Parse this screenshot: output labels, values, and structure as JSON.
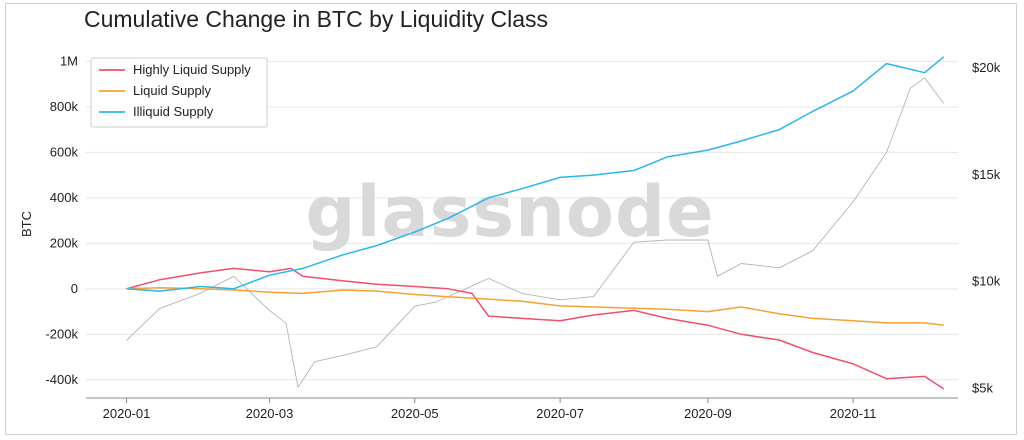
{
  "chart_data": {
    "type": "line",
    "title": "Cumulative Change in BTC by Liquidity Class",
    "ylabel": "BTC",
    "y2label": "",
    "watermark": "glassnode",
    "grid": true,
    "legend_position": "top-left",
    "x_range": [
      "2019-12-15",
      "2020-12-15"
    ],
    "ylim": [
      -480000,
      1050000
    ],
    "y2lim": [
      4500,
      20800
    ],
    "x_ticks": [
      {
        "date": "2020-01-01",
        "label": "2020-01"
      },
      {
        "date": "2020-03-01",
        "label": "2020-03"
      },
      {
        "date": "2020-05-01",
        "label": "2020-05"
      },
      {
        "date": "2020-07-01",
        "label": "2020-07"
      },
      {
        "date": "2020-09-01",
        "label": "2020-09"
      },
      {
        "date": "2020-11-01",
        "label": "2020-11"
      }
    ],
    "y_ticks": [
      {
        "value": -400000,
        "label": "-400k"
      },
      {
        "value": -200000,
        "label": "-200k"
      },
      {
        "value": 0,
        "label": "0"
      },
      {
        "value": 200000,
        "label": "200k"
      },
      {
        "value": 400000,
        "label": "400k"
      },
      {
        "value": 600000,
        "label": "600k"
      },
      {
        "value": 800000,
        "label": "800k"
      },
      {
        "value": 1000000,
        "label": "1M"
      }
    ],
    "y2_ticks": [
      {
        "value": 5000,
        "label": "$5k"
      },
      {
        "value": 10000,
        "label": "$10k"
      },
      {
        "value": 15000,
        "label": "$15k"
      },
      {
        "value": 20000,
        "label": "$20k"
      }
    ],
    "series": [
      {
        "name": "Highly Liquid Supply",
        "color": "#f0506e",
        "axis": "left",
        "points": [
          [
            "2020-01-01",
            0
          ],
          [
            "2020-01-15",
            40000
          ],
          [
            "2020-02-01",
            70000
          ],
          [
            "2020-02-15",
            90000
          ],
          [
            "2020-03-01",
            75000
          ],
          [
            "2020-03-10",
            90000
          ],
          [
            "2020-03-15",
            55000
          ],
          [
            "2020-04-01",
            35000
          ],
          [
            "2020-04-15",
            20000
          ],
          [
            "2020-05-01",
            10000
          ],
          [
            "2020-05-15",
            0
          ],
          [
            "2020-05-25",
            -20000
          ],
          [
            "2020-06-01",
            -120000
          ],
          [
            "2020-06-15",
            -130000
          ],
          [
            "2020-07-01",
            -140000
          ],
          [
            "2020-07-15",
            -115000
          ],
          [
            "2020-08-01",
            -95000
          ],
          [
            "2020-08-15",
            -130000
          ],
          [
            "2020-09-01",
            -160000
          ],
          [
            "2020-09-15",
            -200000
          ],
          [
            "2020-10-01",
            -225000
          ],
          [
            "2020-10-15",
            -280000
          ],
          [
            "2020-11-01",
            -330000
          ],
          [
            "2020-11-15",
            -395000
          ],
          [
            "2020-12-01",
            -385000
          ],
          [
            "2020-12-09",
            -440000
          ]
        ]
      },
      {
        "name": "Liquid Supply",
        "color": "#f7a035",
        "axis": "left",
        "points": [
          [
            "2020-01-01",
            0
          ],
          [
            "2020-01-15",
            5000
          ],
          [
            "2020-02-01",
            0
          ],
          [
            "2020-02-15",
            -5000
          ],
          [
            "2020-03-01",
            -15000
          ],
          [
            "2020-03-15",
            -20000
          ],
          [
            "2020-04-01",
            -5000
          ],
          [
            "2020-04-15",
            -10000
          ],
          [
            "2020-05-01",
            -25000
          ],
          [
            "2020-05-15",
            -35000
          ],
          [
            "2020-06-01",
            -45000
          ],
          [
            "2020-06-15",
            -55000
          ],
          [
            "2020-07-01",
            -75000
          ],
          [
            "2020-07-15",
            -80000
          ],
          [
            "2020-08-01",
            -85000
          ],
          [
            "2020-08-15",
            -90000
          ],
          [
            "2020-09-01",
            -100000
          ],
          [
            "2020-09-15",
            -80000
          ],
          [
            "2020-10-01",
            -110000
          ],
          [
            "2020-10-15",
            -130000
          ],
          [
            "2020-11-01",
            -140000
          ],
          [
            "2020-11-15",
            -150000
          ],
          [
            "2020-12-01",
            -150000
          ],
          [
            "2020-12-09",
            -160000
          ]
        ]
      },
      {
        "name": "Illiquid Supply",
        "color": "#2bb5ec",
        "axis": "left",
        "points": [
          [
            "2020-01-01",
            0
          ],
          [
            "2020-01-15",
            -10000
          ],
          [
            "2020-02-01",
            10000
          ],
          [
            "2020-02-15",
            0
          ],
          [
            "2020-03-01",
            60000
          ],
          [
            "2020-03-15",
            90000
          ],
          [
            "2020-04-01",
            150000
          ],
          [
            "2020-04-15",
            190000
          ],
          [
            "2020-05-01",
            250000
          ],
          [
            "2020-05-15",
            310000
          ],
          [
            "2020-06-01",
            400000
          ],
          [
            "2020-06-15",
            440000
          ],
          [
            "2020-07-01",
            490000
          ],
          [
            "2020-07-15",
            500000
          ],
          [
            "2020-08-01",
            520000
          ],
          [
            "2020-08-15",
            580000
          ],
          [
            "2020-09-01",
            610000
          ],
          [
            "2020-09-15",
            650000
          ],
          [
            "2020-10-01",
            700000
          ],
          [
            "2020-10-15",
            780000
          ],
          [
            "2020-11-01",
            870000
          ],
          [
            "2020-11-15",
            990000
          ],
          [
            "2020-12-01",
            950000
          ],
          [
            "2020-12-09",
            1020000
          ]
        ]
      },
      {
        "name": "",
        "color": "#b4b4b4",
        "axis": "right",
        "points": [
          [
            "2020-01-01",
            7200
          ],
          [
            "2020-01-15",
            8700
          ],
          [
            "2020-02-01",
            9400
          ],
          [
            "2020-02-15",
            10200
          ],
          [
            "2020-03-01",
            8600
          ],
          [
            "2020-03-08",
            8000
          ],
          [
            "2020-03-13",
            5000
          ],
          [
            "2020-03-20",
            6200
          ],
          [
            "2020-04-01",
            6500
          ],
          [
            "2020-04-15",
            6900
          ],
          [
            "2020-05-01",
            8800
          ],
          [
            "2020-05-10",
            9000
          ],
          [
            "2020-05-20",
            9500
          ],
          [
            "2020-06-01",
            10100
          ],
          [
            "2020-06-15",
            9400
          ],
          [
            "2020-07-01",
            9100
          ],
          [
            "2020-07-15",
            9250
          ],
          [
            "2020-08-01",
            11800
          ],
          [
            "2020-08-15",
            11900
          ],
          [
            "2020-09-01",
            11900
          ],
          [
            "2020-09-05",
            10200
          ],
          [
            "2020-09-15",
            10800
          ],
          [
            "2020-10-01",
            10600
          ],
          [
            "2020-10-15",
            11400
          ],
          [
            "2020-11-01",
            13700
          ],
          [
            "2020-11-15",
            16000
          ],
          [
            "2020-11-25",
            19000
          ],
          [
            "2020-12-01",
            19500
          ],
          [
            "2020-12-09",
            18300
          ]
        ]
      }
    ]
  }
}
